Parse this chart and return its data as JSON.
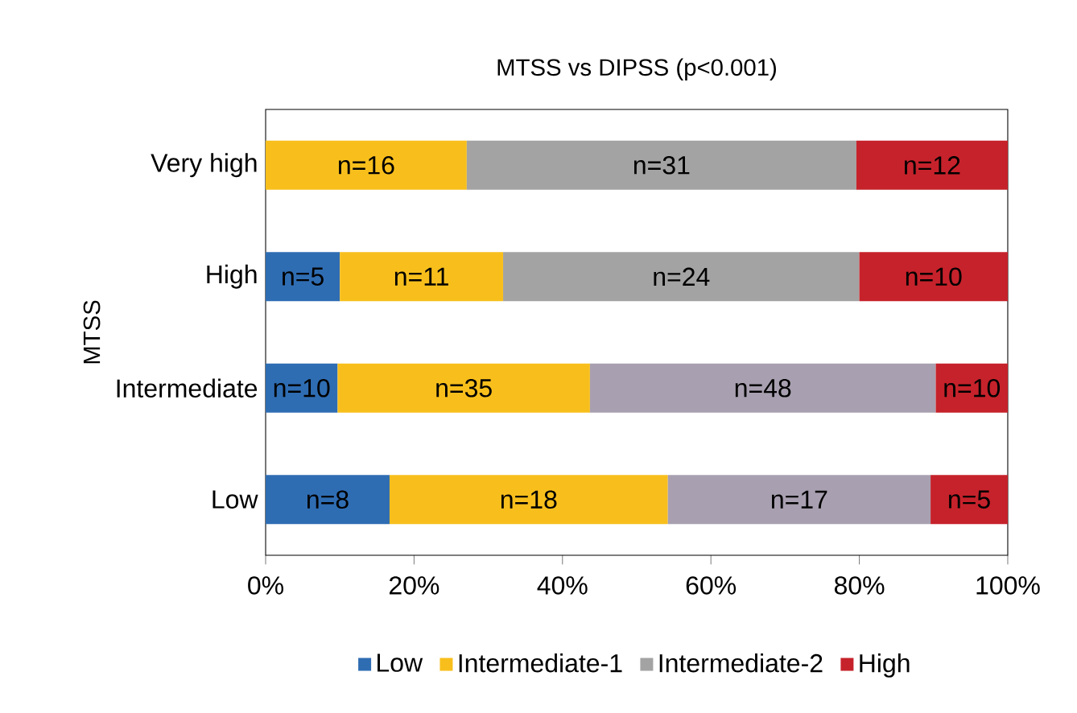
{
  "chart_data": {
    "type": "bar",
    "orientation": "horizontal",
    "stacked": true,
    "title": "MTSS vs DIPSS (p<0.001)",
    "ylabel": "MTSS",
    "categories": [
      "Very high",
      "High",
      "Intermediate",
      "Low"
    ],
    "series": [
      {
        "name": "Low",
        "color": "#2f6db3",
        "values": [
          0,
          10,
          9.7,
          16.7
        ]
      },
      {
        "name": "Intermediate-1",
        "color": "#f8bf1c",
        "values": [
          27.1,
          22,
          34.0,
          37.5
        ]
      },
      {
        "name": "Intermediate-2",
        "color": "#a3a3a3",
        "colors": [
          "#a3a3a3",
          "#a3a3a3",
          "#a8a0b0",
          "#a8a0b0"
        ],
        "values": [
          52.5,
          48,
          46.6,
          35.4
        ]
      },
      {
        "name": "High",
        "color": "#c6222b",
        "values": [
          20.4,
          20,
          9.7,
          10.4
        ]
      }
    ],
    "annotations": [
      "n=16",
      "n=31",
      "n=12",
      "n=5",
      "n=11",
      "n=24",
      "n=10",
      "n=10",
      "n=35",
      "n=48",
      "n=10",
      "n=8",
      "n=18",
      "n=17",
      "n=5"
    ],
    "xlim": [
      0,
      100
    ],
    "xticks": [
      {
        "value": 0,
        "label": "0%"
      },
      {
        "value": 20,
        "label": "20%"
      },
      {
        "value": 40,
        "label": "40%"
      },
      {
        "value": 60,
        "label": "60%"
      },
      {
        "value": 80,
        "label": "80%"
      },
      {
        "value": 100,
        "label": "100%"
      }
    ],
    "legend": "bottom",
    "grid": false
  }
}
